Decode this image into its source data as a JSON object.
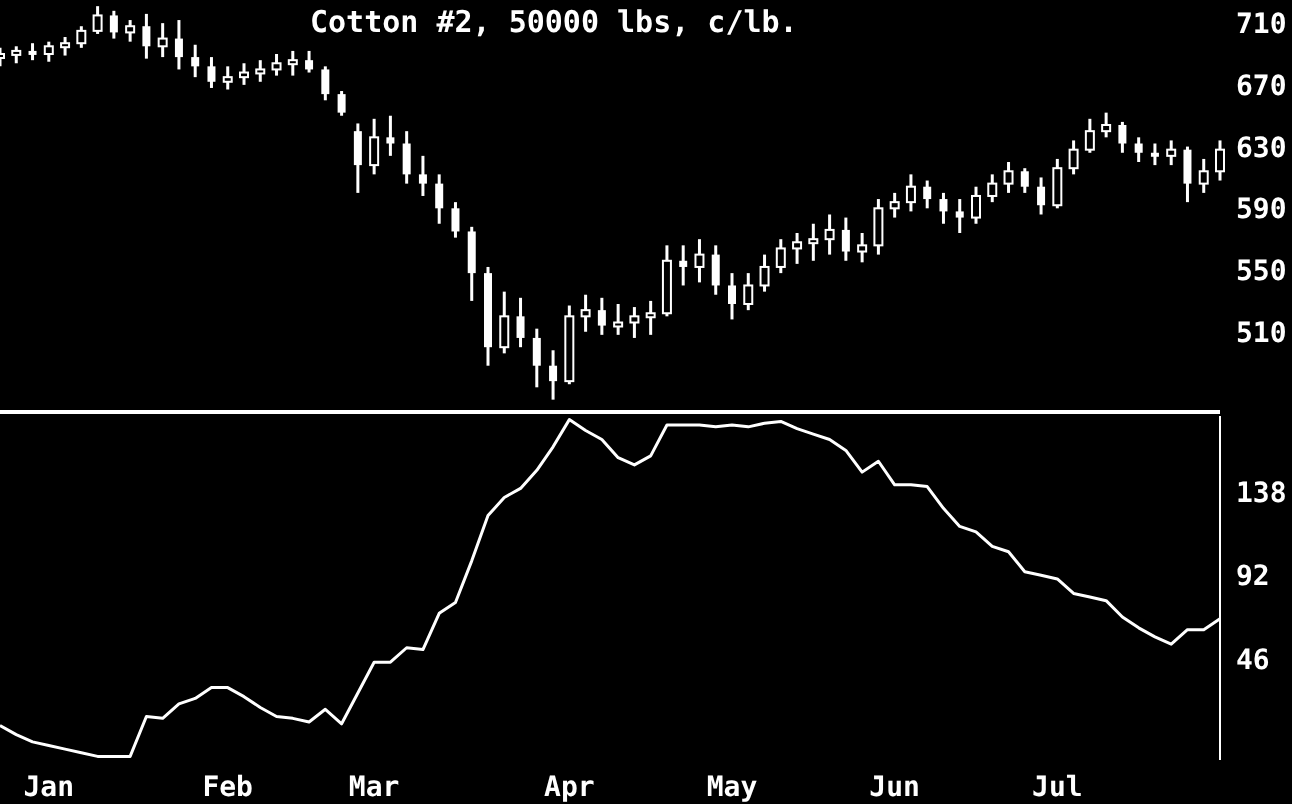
{
  "chart_data": [
    {
      "type": "candlestick",
      "title": "Cotton #2, 50000 lbs, c/lb.",
      "color": "#ffffff",
      "tick_labels": "y",
      "ylim": [
        458,
        725
      ],
      "yticks": [
        510,
        550,
        590,
        630,
        670,
        710
      ],
      "categories": [
        null,
        null,
        null,
        null,
        null,
        null,
        null,
        null,
        null,
        null,
        null,
        null,
        null,
        null,
        null,
        null,
        null,
        null,
        null,
        null,
        null,
        null,
        null,
        null,
        null,
        null,
        null,
        null,
        null,
        null,
        null,
        null,
        null,
        null,
        null,
        null,
        null,
        null,
        null,
        null,
        null,
        null,
        null,
        null,
        null,
        null,
        null,
        null,
        null,
        null,
        null,
        null,
        null,
        null,
        null,
        null,
        null,
        null,
        null,
        null,
        null,
        null,
        null,
        null,
        null,
        null,
        null,
        null,
        null,
        null,
        null,
        null,
        null,
        null,
        null,
        null
      ],
      "ohlc": [
        [
          688,
          694,
          682,
          690
        ],
        [
          690,
          695,
          684,
          692
        ],
        [
          692,
          697,
          686,
          690
        ],
        [
          690,
          698,
          685,
          695
        ],
        [
          695,
          701,
          689,
          697
        ],
        [
          697,
          708,
          694,
          705
        ],
        [
          705,
          721,
          703,
          715
        ],
        [
          715,
          718,
          700,
          704
        ],
        [
          704,
          712,
          698,
          708
        ],
        [
          708,
          716,
          687,
          695
        ],
        [
          695,
          710,
          688,
          700
        ],
        [
          700,
          712,
          680,
          688
        ],
        [
          688,
          696,
          675,
          682
        ],
        [
          682,
          688,
          668,
          672
        ],
        [
          672,
          682,
          667,
          675
        ],
        [
          675,
          684,
          670,
          678
        ],
        [
          678,
          686,
          672,
          680
        ],
        [
          680,
          690,
          676,
          684
        ],
        [
          684,
          692,
          676,
          686
        ],
        [
          686,
          692,
          678,
          680
        ],
        [
          680,
          682,
          660,
          664
        ],
        [
          664,
          666,
          650,
          652
        ],
        [
          640,
          645,
          600,
          618
        ],
        [
          618,
          648,
          612,
          636
        ],
        [
          636,
          650,
          624,
          632
        ],
        [
          632,
          640,
          606,
          612
        ],
        [
          612,
          624,
          598,
          606
        ],
        [
          606,
          612,
          580,
          590
        ],
        [
          590,
          594,
          571,
          575
        ],
        [
          575,
          578,
          530,
          548
        ],
        [
          548,
          552,
          488,
          500
        ],
        [
          500,
          536,
          496,
          520
        ],
        [
          520,
          532,
          500,
          506
        ],
        [
          506,
          512,
          474,
          488
        ],
        [
          488,
          498,
          466,
          478
        ],
        [
          478,
          527,
          476,
          520
        ],
        [
          520,
          534,
          510,
          524
        ],
        [
          524,
          532,
          508,
          514
        ],
        [
          514,
          528,
          508,
          516
        ],
        [
          516,
          526,
          506,
          520
        ],
        [
          520,
          530,
          508,
          522
        ],
        [
          522,
          566,
          520,
          556
        ],
        [
          556,
          566,
          540,
          552
        ],
        [
          552,
          570,
          542,
          560
        ],
        [
          560,
          566,
          534,
          540
        ],
        [
          540,
          548,
          518,
          528
        ],
        [
          528,
          548,
          524,
          540
        ],
        [
          540,
          560,
          536,
          552
        ],
        [
          552,
          570,
          548,
          564
        ],
        [
          564,
          574,
          554,
          568
        ],
        [
          568,
          580,
          556,
          570
        ],
        [
          570,
          586,
          560,
          576
        ],
        [
          576,
          584,
          556,
          562
        ],
        [
          562,
          574,
          555,
          566
        ],
        [
          566,
          596,
          560,
          590
        ],
        [
          590,
          600,
          584,
          594
        ],
        [
          594,
          612,
          588,
          604
        ],
        [
          604,
          608,
          590,
          596
        ],
        [
          596,
          600,
          580,
          588
        ],
        [
          588,
          596,
          574,
          584
        ],
        [
          584,
          604,
          580,
          598
        ],
        [
          598,
          612,
          594,
          606
        ],
        [
          606,
          620,
          600,
          614
        ],
        [
          614,
          616,
          600,
          604
        ],
        [
          604,
          610,
          586,
          592
        ],
        [
          592,
          622,
          590,
          616
        ],
        [
          616,
          634,
          612,
          628
        ],
        [
          628,
          648,
          626,
          640
        ],
        [
          640,
          652,
          636,
          644
        ],
        [
          644,
          646,
          626,
          632
        ],
        [
          632,
          636,
          620,
          626
        ],
        [
          626,
          632,
          618,
          624
        ],
        [
          624,
          634,
          618,
          628
        ],
        [
          628,
          630,
          594,
          606
        ],
        [
          606,
          622,
          600,
          614
        ],
        [
          614,
          634,
          608,
          628
        ]
      ]
    },
    {
      "type": "line",
      "color": "#ffffff",
      "ylim": [
        -10,
        180
      ],
      "yticks": [
        46,
        92,
        138
      ],
      "categories": [
        null,
        null,
        null,
        "Jan",
        null,
        null,
        null,
        null,
        null,
        null,
        null,
        null,
        null,
        null,
        "Feb",
        null,
        null,
        null,
        null,
        null,
        null,
        null,
        null,
        "Mar",
        null,
        null,
        null,
        null,
        null,
        null,
        null,
        null,
        null,
        null,
        null,
        "Apr",
        null,
        null,
        null,
        null,
        null,
        null,
        null,
        null,
        null,
        "May",
        null,
        null,
        null,
        null,
        null,
        null,
        null,
        null,
        null,
        "Jun",
        null,
        null,
        null,
        null,
        null,
        null,
        null,
        null,
        null,
        "Jul",
        null,
        null,
        null,
        null,
        null,
        null,
        null,
        null,
        null,
        null
      ],
      "values": [
        9,
        4,
        0,
        -2,
        -4,
        -6,
        -8,
        -8,
        -8,
        14,
        13,
        21,
        24,
        30,
        30,
        25,
        19,
        14,
        13,
        11,
        18,
        10,
        27,
        44,
        44,
        52,
        51,
        71,
        77,
        100,
        125,
        135,
        140,
        150,
        163,
        178,
        172,
        167,
        157,
        153,
        158,
        175,
        175,
        175,
        174,
        175,
        174,
        176,
        177,
        173,
        170,
        167,
        161,
        149,
        155,
        142,
        142,
        141,
        129,
        119,
        116,
        108,
        105,
        94,
        92,
        90,
        82,
        80,
        78,
        69,
        63,
        58,
        54,
        62,
        62,
        68
      ]
    }
  ]
}
